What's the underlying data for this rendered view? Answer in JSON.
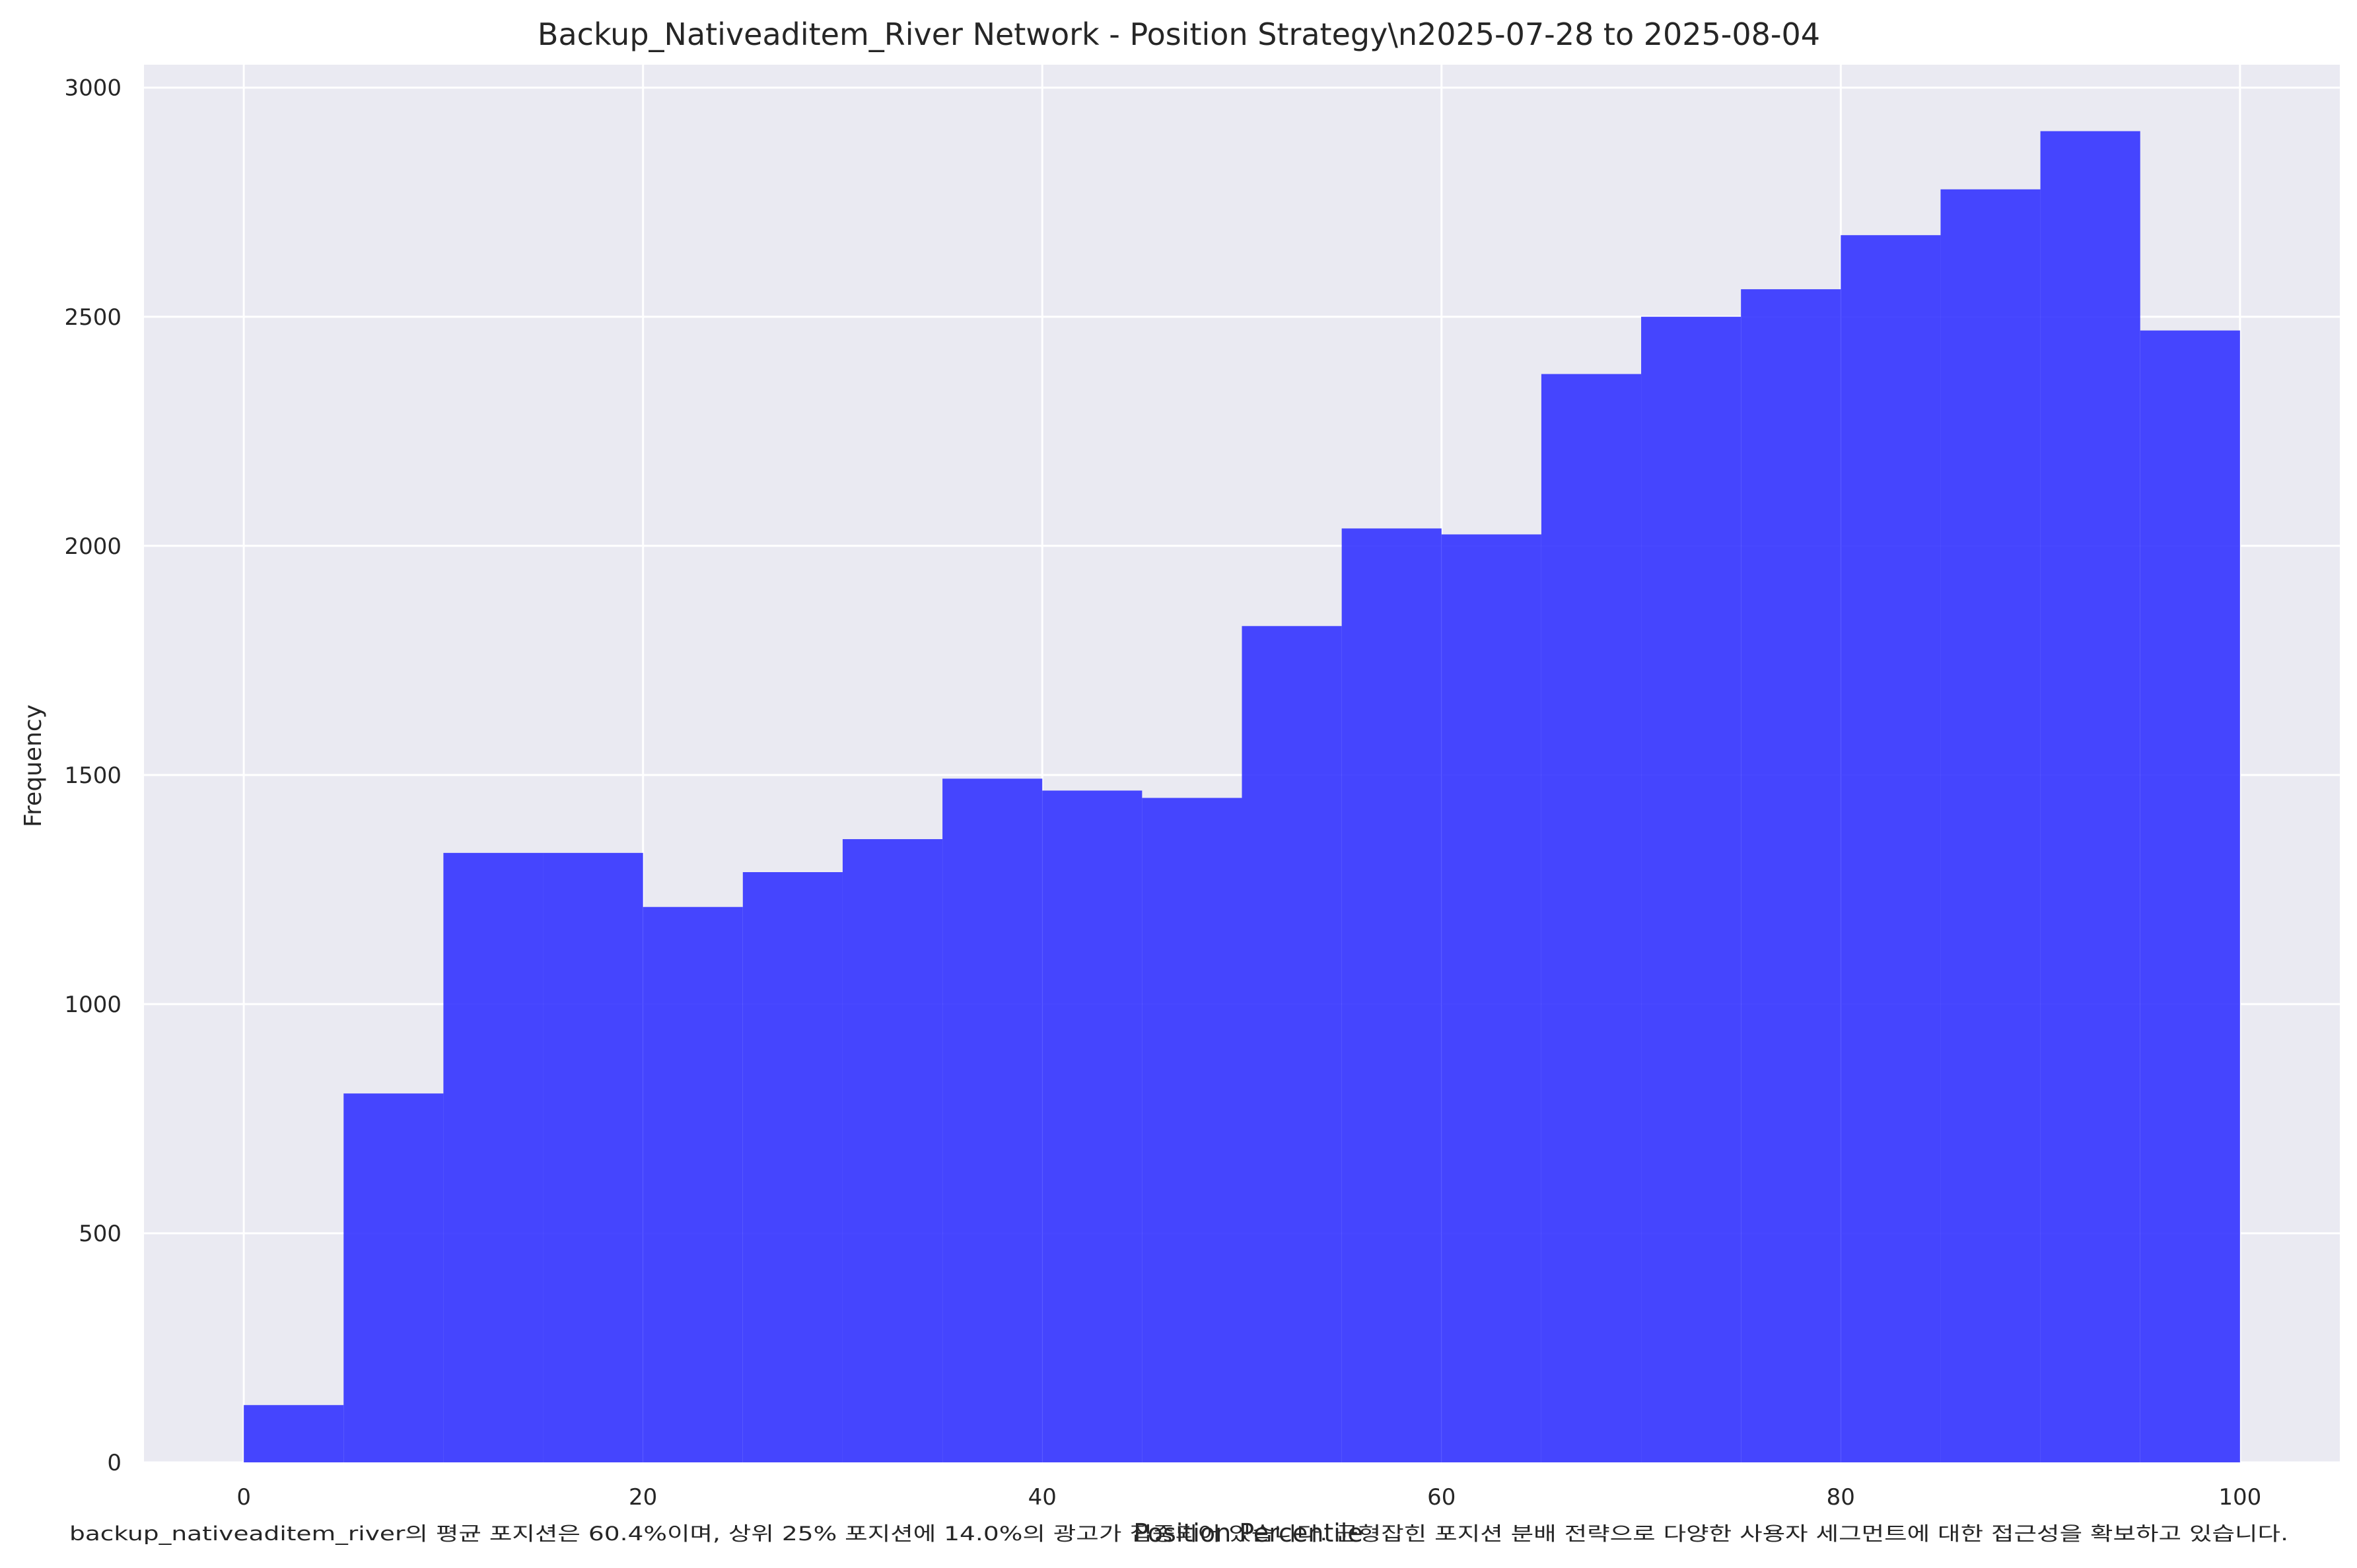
{
  "chart_data": {
    "type": "bar",
    "title": "Backup_Nativeaditem_River Network - Position Strategy\\n2025-07-28 to 2025-08-04",
    "xlabel": "Position Percentile",
    "ylabel": "Frequency",
    "xlim": [
      -5,
      105
    ],
    "ylim": [
      0,
      3050
    ],
    "x_ticks": [
      0,
      20,
      40,
      60,
      80,
      100
    ],
    "y_ticks": [
      0,
      500,
      1000,
      1500,
      2000,
      2500,
      3000
    ],
    "grid": true,
    "bar_color": "#3333ff",
    "background_color": "#eaeaf2",
    "bins": [
      {
        "start": 0,
        "end": 5,
        "value": 125
      },
      {
        "start": 5,
        "end": 10,
        "value": 805
      },
      {
        "start": 10,
        "end": 15,
        "value": 1330
      },
      {
        "start": 15,
        "end": 20,
        "value": 1330
      },
      {
        "start": 20,
        "end": 25,
        "value": 1212
      },
      {
        "start": 25,
        "end": 30,
        "value": 1288
      },
      {
        "start": 30,
        "end": 35,
        "value": 1360
      },
      {
        "start": 35,
        "end": 40,
        "value": 1492
      },
      {
        "start": 40,
        "end": 45,
        "value": 1466
      },
      {
        "start": 45,
        "end": 50,
        "value": 1450
      },
      {
        "start": 50,
        "end": 55,
        "value": 1825
      },
      {
        "start": 55,
        "end": 60,
        "value": 2038
      },
      {
        "start": 60,
        "end": 65,
        "value": 2025
      },
      {
        "start": 65,
        "end": 70,
        "value": 2375
      },
      {
        "start": 70,
        "end": 75,
        "value": 2500
      },
      {
        "start": 75,
        "end": 80,
        "value": 2560
      },
      {
        "start": 80,
        "end": 85,
        "value": 2678
      },
      {
        "start": 85,
        "end": 90,
        "value": 2778
      },
      {
        "start": 90,
        "end": 95,
        "value": 2905
      },
      {
        "start": 95,
        "end": 100,
        "value": 2470
      }
    ],
    "caption": "backup_nativeaditem_river의 평균 포지션은 60.4%이며, 상위 25% 포지션에 14.0%의 광고가 집중되어 있습니다. 균형잡힌 포지션 분배 전략으로 다양한 사용자 세그먼트에 대한 접근성을 확보하고 있습니다."
  }
}
